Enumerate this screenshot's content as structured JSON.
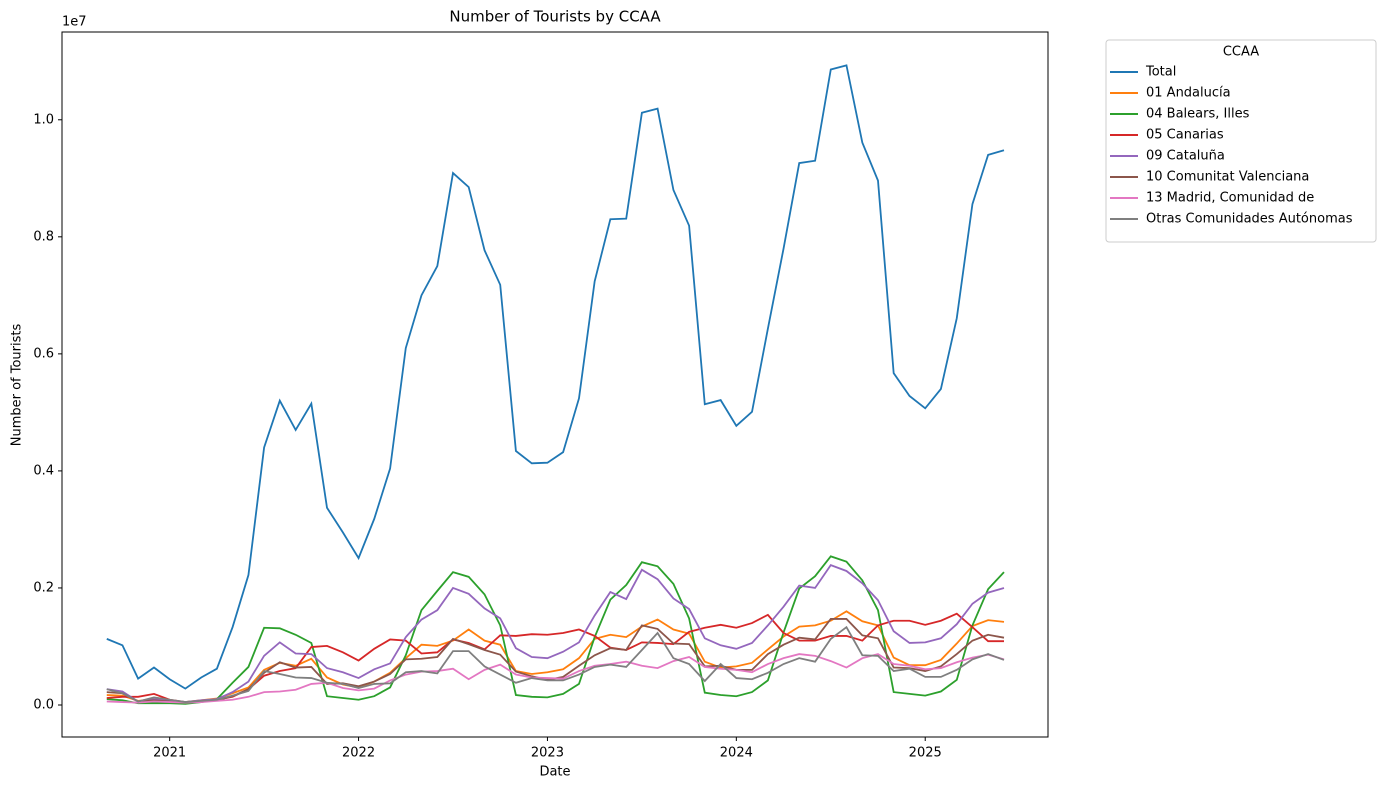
{
  "chart_data": {
    "type": "line",
    "title": "Number of Tourists by CCAA",
    "x_label": "Date",
    "y_label": "Number of Tourists",
    "y_offset_label": "1e7",
    "x": [
      2020.667,
      2020.75,
      2020.833,
      2020.917,
      2021,
      2021.083,
      2021.167,
      2021.25,
      2021.333,
      2021.417,
      2021.5,
      2021.583,
      2021.667,
      2021.75,
      2021.833,
      2021.917,
      2022,
      2022.083,
      2022.167,
      2022.25,
      2022.333,
      2022.417,
      2022.5,
      2022.583,
      2022.667,
      2022.75,
      2022.833,
      2022.917,
      2023,
      2023.083,
      2023.167,
      2023.25,
      2023.333,
      2023.417,
      2023.5,
      2023.583,
      2023.667,
      2023.75,
      2023.833,
      2023.917,
      2024,
      2024.083,
      2024.167,
      2024.25,
      2024.333,
      2024.417,
      2024.5,
      2024.583,
      2024.667,
      2024.75,
      2024.833,
      2024.917,
      2025,
      2025.083,
      2025.167,
      2025.25,
      2025.333,
      2025.417
    ],
    "xlim": [
      2020.43,
      2025.65
    ],
    "xticks": [
      2021,
      2022,
      2023,
      2024,
      2025
    ],
    "ylim": [
      -547000,
      11500000
    ],
    "yticks": [
      {
        "value": 0,
        "label": "0.0"
      },
      {
        "value": 2000000,
        "label": "0.2"
      },
      {
        "value": 4000000,
        "label": "0.4"
      },
      {
        "value": 6000000,
        "label": "0.6"
      },
      {
        "value": 8000000,
        "label": "0.8"
      },
      {
        "value": 10000000,
        "label": "1.0"
      }
    ],
    "grid": false,
    "legend_title": "CCAA",
    "legend": "outside-upper-right",
    "series": [
      {
        "name": "Total",
        "color": "#1f77b4",
        "values": [
          1130000.0,
          1020000.0,
          450000.0,
          640000.0,
          440000.0,
          280000.0,
          470000.0,
          620000.0,
          1330000.0,
          2220000.0,
          4400000.0,
          5200000.0,
          4700000.0,
          5150000.0,
          3370000.0,
          2950000.0,
          2510000.0,
          3180000.0,
          4040000.0,
          6100000.0,
          7000000.0,
          7500000.0,
          9090000.0,
          8850000.0,
          7770000.0,
          7180000.0,
          4340000.0,
          4130000.0,
          4140000.0,
          4320000.0,
          5240000.0,
          7240000.0,
          8300000.0,
          8310000.0,
          10120000.0,
          10190000.0,
          8800000.0,
          8190000.0,
          5140000.0,
          5210000.0,
          4770000.0,
          5010000.0,
          6430000.0,
          7800000.0,
          9260000.0,
          9300000.0,
          10860000.0,
          10930000.0,
          9610000.0,
          8960000.0,
          5670000.0,
          5280000.0,
          5070000.0,
          5400000.0,
          6610000.0,
          8560000.0,
          9400000.0,
          9480000.0
        ]
      },
      {
        "name": "01 Andalucía",
        "color": "#ff7f0e",
        "values": [
          170000.0,
          160000.0,
          70000.0,
          100000.0,
          60000.0,
          50000.0,
          80000.0,
          110000.0,
          200000.0,
          300000.0,
          600000.0,
          720000.0,
          670000.0,
          790000.0,
          470000.0,
          350000.0,
          300000.0,
          400000.0,
          550000.0,
          800000.0,
          1030000.0,
          1010000.0,
          1100000.0,
          1290000.0,
          1100000.0,
          1030000.0,
          580000.0,
          530000.0,
          560000.0,
          610000.0,
          800000.0,
          1130000.0,
          1200000.0,
          1160000.0,
          1340000.0,
          1460000.0,
          1290000.0,
          1220000.0,
          740000.0,
          640000.0,
          660000.0,
          720000.0,
          950000.0,
          1170000.0,
          1340000.0,
          1360000.0,
          1440000.0,
          1600000.0,
          1430000.0,
          1360000.0,
          810000.0,
          680000.0,
          680000.0,
          770000.0,
          1050000.0,
          1350000.0,
          1450000.0,
          1420000.0
        ]
      },
      {
        "name": "04 Balears, Illes",
        "color": "#2ca02c",
        "values": [
          100000.0,
          80000.0,
          30000.0,
          30000.0,
          30000.0,
          20000.0,
          50000.0,
          100000.0,
          380000.0,
          650000.0,
          1320000.0,
          1310000.0,
          1200000.0,
          1060000.0,
          150000.0,
          120000.0,
          90000.0,
          150000.0,
          300000.0,
          850000.0,
          1620000.0,
          1950000.0,
          2270000.0,
          2190000.0,
          1890000.0,
          1360000.0,
          170000.0,
          140000.0,
          130000.0,
          190000.0,
          360000.0,
          1160000.0,
          1800000.0,
          2050000.0,
          2440000.0,
          2370000.0,
          2070000.0,
          1480000.0,
          210000.0,
          170000.0,
          150000.0,
          220000.0,
          420000.0,
          1240000.0,
          1990000.0,
          2200000.0,
          2540000.0,
          2450000.0,
          2130000.0,
          1620000.0,
          220000.0,
          190000.0,
          160000.0,
          230000.0,
          430000.0,
          1360000.0,
          1980000.0,
          2270000.0
        ]
      },
      {
        "name": "05 Canarias",
        "color": "#d62728",
        "values": [
          120000.0,
          140000.0,
          140000.0,
          190000.0,
          90000.0,
          50000.0,
          70000.0,
          90000.0,
          140000.0,
          270000.0,
          500000.0,
          580000.0,
          630000.0,
          990000.0,
          1010000.0,
          900000.0,
          760000.0,
          960000.0,
          1120000.0,
          1100000.0,
          880000.0,
          900000.0,
          1120000.0,
          1060000.0,
          950000.0,
          1190000.0,
          1180000.0,
          1210000.0,
          1200000.0,
          1230000.0,
          1290000.0,
          1180000.0,
          980000.0,
          940000.0,
          1070000.0,
          1060000.0,
          1040000.0,
          1250000.0,
          1320000.0,
          1370000.0,
          1320000.0,
          1400000.0,
          1540000.0,
          1230000.0,
          1100000.0,
          1100000.0,
          1180000.0,
          1180000.0,
          1100000.0,
          1360000.0,
          1440000.0,
          1440000.0,
          1370000.0,
          1440000.0,
          1560000.0,
          1330000.0,
          1090000.0,
          1090000.0
        ]
      },
      {
        "name": "09 Cataluña",
        "color": "#9467bd",
        "values": [
          270000.0,
          230000.0,
          60000.0,
          100000.0,
          80000.0,
          50000.0,
          80000.0,
          100000.0,
          220000.0,
          400000.0,
          840000.0,
          1070000.0,
          880000.0,
          870000.0,
          630000.0,
          560000.0,
          460000.0,
          610000.0,
          710000.0,
          1160000.0,
          1460000.0,
          1620000.0,
          2000000.0,
          1900000.0,
          1650000.0,
          1480000.0,
          970000.0,
          820000.0,
          800000.0,
          910000.0,
          1070000.0,
          1530000.0,
          1930000.0,
          1810000.0,
          2310000.0,
          2150000.0,
          1820000.0,
          1640000.0,
          1140000.0,
          1020000.0,
          960000.0,
          1060000.0,
          1360000.0,
          1680000.0,
          2040000.0,
          2000000.0,
          2390000.0,
          2290000.0,
          2080000.0,
          1790000.0,
          1260000.0,
          1060000.0,
          1070000.0,
          1140000.0,
          1380000.0,
          1730000.0,
          1920000.0,
          2000000.0
        ]
      },
      {
        "name": "10 Comunitat Valenciana",
        "color": "#8c564b",
        "values": [
          220000.0,
          200000.0,
          60000.0,
          80000.0,
          60000.0,
          40000.0,
          70000.0,
          80000.0,
          150000.0,
          270000.0,
          550000.0,
          730000.0,
          640000.0,
          650000.0,
          360000.0,
          370000.0,
          320000.0,
          400000.0,
          530000.0,
          780000.0,
          790000.0,
          820000.0,
          1130000.0,
          1040000.0,
          940000.0,
          860000.0,
          570000.0,
          490000.0,
          430000.0,
          480000.0,
          670000.0,
          850000.0,
          970000.0,
          940000.0,
          1360000.0,
          1300000.0,
          1050000.0,
          1040000.0,
          660000.0,
          670000.0,
          600000.0,
          600000.0,
          870000.0,
          1030000.0,
          1150000.0,
          1120000.0,
          1470000.0,
          1470000.0,
          1190000.0,
          1140000.0,
          640000.0,
          630000.0,
          580000.0,
          660000.0,
          870000.0,
          1100000.0,
          1200000.0,
          1150000.0
        ]
      },
      {
        "name": "13 Madrid, Comunidad de",
        "color": "#e377c2",
        "values": [
          60000.0,
          50000.0,
          40000.0,
          60000.0,
          50000.0,
          40000.0,
          50000.0,
          70000.0,
          90000.0,
          140000.0,
          220000.0,
          230000.0,
          260000.0,
          360000.0,
          380000.0,
          290000.0,
          250000.0,
          280000.0,
          420000.0,
          520000.0,
          570000.0,
          580000.0,
          620000.0,
          440000.0,
          600000.0,
          690000.0,
          520000.0,
          470000.0,
          460000.0,
          450000.0,
          580000.0,
          670000.0,
          700000.0,
          740000.0,
          670000.0,
          630000.0,
          750000.0,
          820000.0,
          650000.0,
          620000.0,
          600000.0,
          560000.0,
          700000.0,
          800000.0,
          870000.0,
          840000.0,
          750000.0,
          640000.0,
          800000.0,
          870000.0,
          700000.0,
          670000.0,
          610000.0,
          630000.0,
          730000.0,
          810000.0,
          860000.0,
          780000.0
        ]
      },
      {
        "name": "Otras Comunidades Autónomas",
        "color": "#7f7f7f",
        "values": [
          270000.0,
          200000.0,
          60000.0,
          130000.0,
          90000.0,
          50000.0,
          70000.0,
          90000.0,
          160000.0,
          240000.0,
          580000.0,
          530000.0,
          470000.0,
          460000.0,
          380000.0,
          360000.0,
          290000.0,
          360000.0,
          370000.0,
          560000.0,
          580000.0,
          540000.0,
          920000.0,
          920000.0,
          660000.0,
          520000.0,
          380000.0,
          460000.0,
          420000.0,
          420000.0,
          520000.0,
          650000.0,
          690000.0,
          650000.0,
          940000.0,
          1230000.0,
          800000.0,
          700000.0,
          410000.0,
          700000.0,
          460000.0,
          440000.0,
          550000.0,
          700000.0,
          800000.0,
          740000.0,
          1130000.0,
          1330000.0,
          850000.0,
          840000.0,
          580000.0,
          620000.0,
          480000.0,
          480000.0,
          600000.0,
          780000.0,
          870000.0,
          770000.0
        ]
      }
    ]
  }
}
